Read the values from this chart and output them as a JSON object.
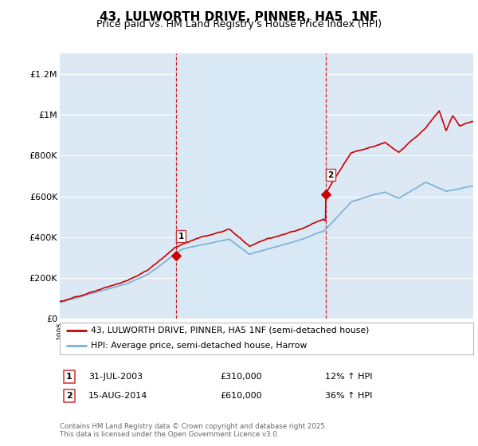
{
  "title": "43, LULWORTH DRIVE, PINNER, HA5  1NF",
  "subtitle": "Price paid vs. HM Land Registry's House Price Index (HPI)",
  "ylim": [
    0,
    1300000
  ],
  "xlim_start": 1995,
  "xlim_end": 2025.5,
  "purchase1": {
    "date": 2003.58,
    "price": 310000,
    "label": "1",
    "text": "31-JUL-2003",
    "amount": "£310,000",
    "hpi_pct": "12% ↑ HPI"
  },
  "purchase2": {
    "date": 2014.62,
    "price": 610000,
    "label": "2",
    "text": "15-AUG-2014",
    "amount": "£610,000",
    "hpi_pct": "36% ↑ HPI"
  },
  "legend_line1": "43, LULWORTH DRIVE, PINNER, HA5 1NF (semi-detached house)",
  "legend_line2": "HPI: Average price, semi-detached house, Harrow",
  "footnote": "Contains HM Land Registry data © Crown copyright and database right 2025.\nThis data is licensed under the Open Government Licence v3.0.",
  "line_color_red": "#cc0000",
  "line_color_blue": "#7ab0d4",
  "shade_color": "#d8e8f5",
  "background_color": "#dce9f5",
  "plot_bg": "#dce9f5",
  "vline_color": "#cc0000",
  "grid_color": "#ffffff",
  "title_fontsize": 11,
  "subtitle_fontsize": 9,
  "ytick_vals": [
    0,
    200000,
    400000,
    600000,
    800000,
    1000000,
    1200000
  ],
  "ytick_labels": [
    "£0",
    "£200K",
    "£400K",
    "£600K",
    "£800K",
    "£1M",
    "£1.2M"
  ]
}
